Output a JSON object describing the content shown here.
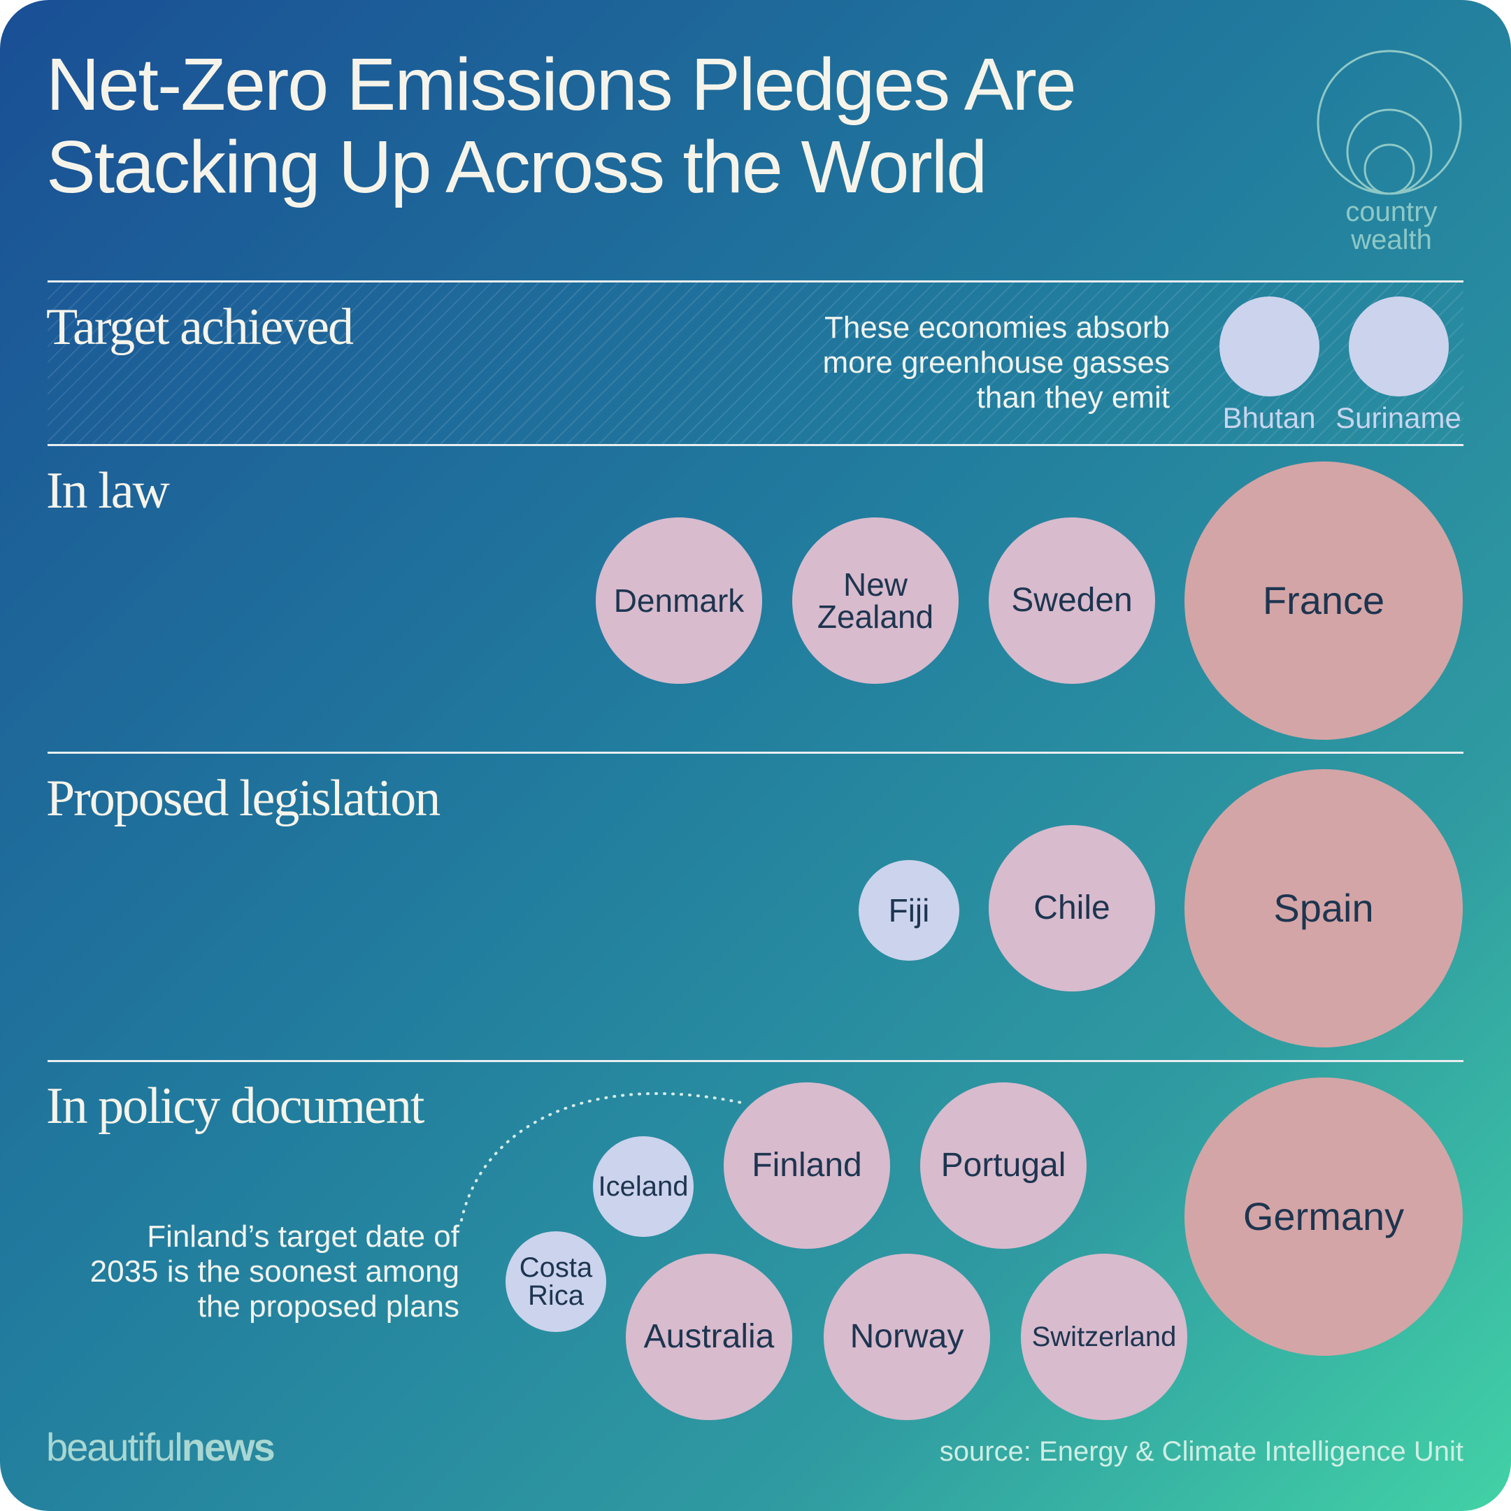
{
  "title_lines": [
    "Net-Zero Emissions Pledges Are",
    "Stacking Up Across the World"
  ],
  "legend": {
    "label_lines": [
      "country",
      "wealth"
    ]
  },
  "sections": [
    {
      "title": "Target achieved",
      "note_lines": [
        "These economies absorb",
        "more greenhouse gasses",
        "than they emit"
      ],
      "countries": [
        {
          "name_lines": [
            "Bhutan"
          ],
          "wealth": "low"
        },
        {
          "name_lines": [
            "Suriname"
          ],
          "wealth": "low"
        }
      ]
    },
    {
      "title": "In law",
      "countries": [
        {
          "name_lines": [
            "Denmark"
          ],
          "wealth": "medium"
        },
        {
          "name_lines": [
            "New",
            "Zealand"
          ],
          "wealth": "medium"
        },
        {
          "name_lines": [
            "Sweden"
          ],
          "wealth": "medium"
        },
        {
          "name_lines": [
            "France"
          ],
          "wealth": "high"
        }
      ]
    },
    {
      "title": "Proposed legislation",
      "countries": [
        {
          "name_lines": [
            "Fiji"
          ],
          "wealth": "low"
        },
        {
          "name_lines": [
            "Chile"
          ],
          "wealth": "medium"
        },
        {
          "name_lines": [
            "Spain"
          ],
          "wealth": "high"
        }
      ]
    },
    {
      "title": "In policy document",
      "note_lines": [
        "Finland’s target date of",
        "2035 is the soonest among",
        "the proposed plans"
      ],
      "countries": [
        {
          "name_lines": [
            "Iceland"
          ],
          "wealth": "low"
        },
        {
          "name_lines": [
            "Finland"
          ],
          "wealth": "medium"
        },
        {
          "name_lines": [
            "Portugal"
          ],
          "wealth": "medium"
        },
        {
          "name_lines": [
            "Germany"
          ],
          "wealth": "high"
        },
        {
          "name_lines": [
            "Costa",
            "Rica"
          ],
          "wealth": "low"
        },
        {
          "name_lines": [
            "Australia"
          ],
          "wealth": "medium"
        },
        {
          "name_lines": [
            "Norway"
          ],
          "wealth": "medium"
        },
        {
          "name_lines": [
            "Switzerland"
          ],
          "wealth": "medium"
        }
      ]
    }
  ],
  "colors": {
    "low": "#ccd3ec",
    "medium": "#d8bbcd",
    "high": "#d4a5a6",
    "background_start": "#1a4f95",
    "background_end": "#42d2a6"
  },
  "footer": {
    "logo_parts": [
      "beautiful",
      "news"
    ],
    "source": "source: Energy & Climate Intelligence Unit"
  }
}
